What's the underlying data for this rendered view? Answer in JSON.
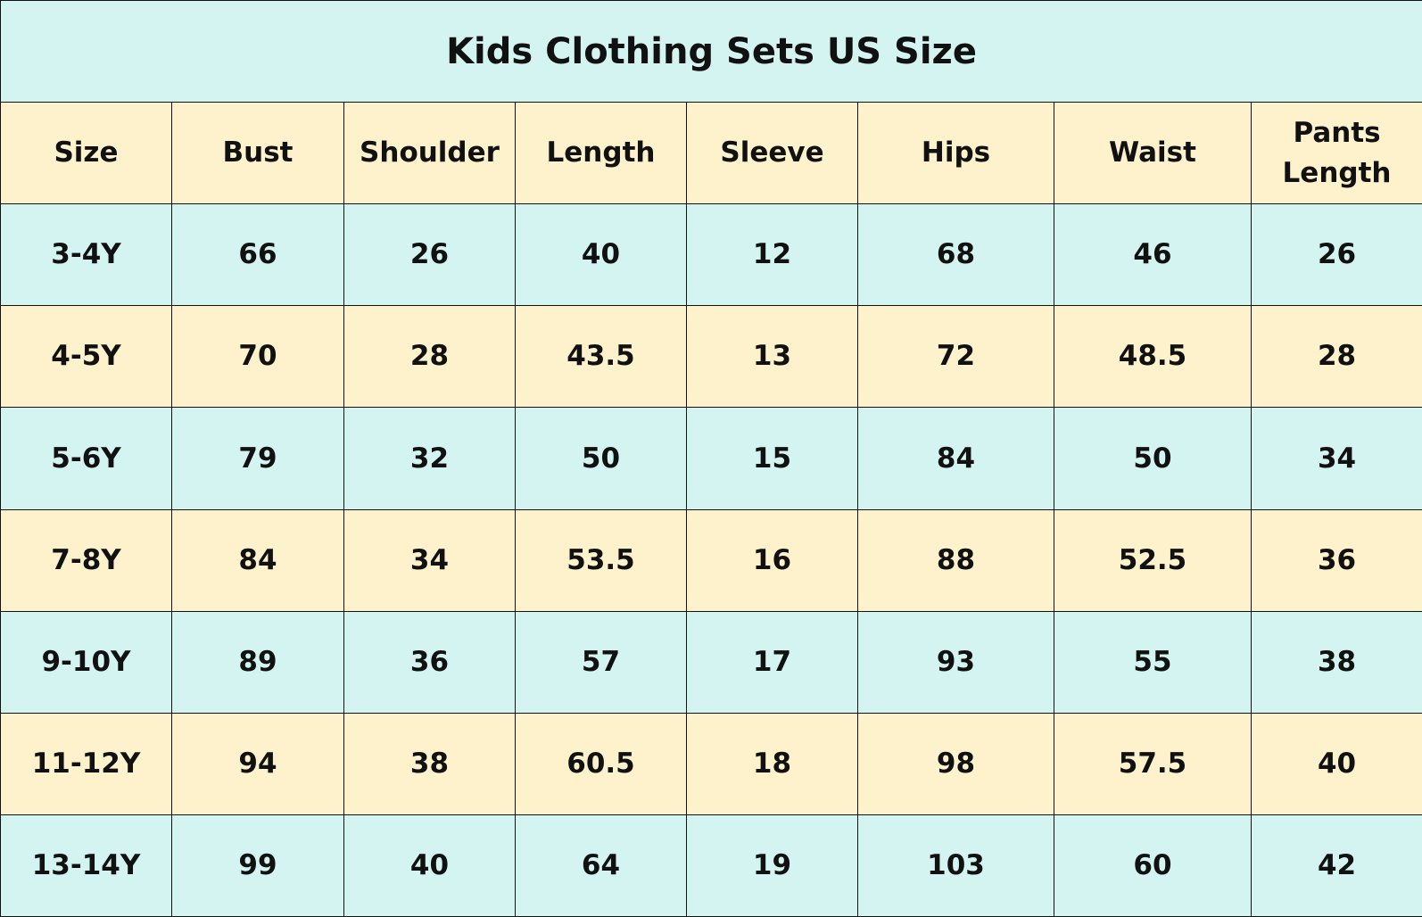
{
  "title": "Kids Clothing Sets US Size",
  "headers": [
    "Size",
    "Bust",
    "Shoulder",
    "Length",
    "Sleeve",
    "Hips",
    "Waist",
    "Pants Length"
  ],
  "rows": [
    [
      "3-4Y",
      "66",
      "26",
      "40",
      "12",
      "68",
      "46",
      "26"
    ],
    [
      "4-5Y",
      "70",
      "28",
      "43.5",
      "13",
      "72",
      "48.5",
      "28"
    ],
    [
      "5-6Y",
      "79",
      "32",
      "50",
      "15",
      "84",
      "50",
      "34"
    ],
    [
      "7-8Y",
      "84",
      "34",
      "53.5",
      "16",
      "88",
      "52.5",
      "36"
    ],
    [
      "9-10Y",
      "89",
      "36",
      "57",
      "17",
      "93",
      "55",
      "38"
    ],
    [
      "11-12Y",
      "94",
      "38",
      "60.5",
      "18",
      "98",
      "57.5",
      "40"
    ],
    [
      "13-14Y",
      "99",
      "40",
      "64",
      "19",
      "103",
      "60",
      "42"
    ]
  ],
  "colors": {
    "cyan": "#d3f4f0",
    "yellow": "#fdf2cc",
    "border": "#111111"
  }
}
